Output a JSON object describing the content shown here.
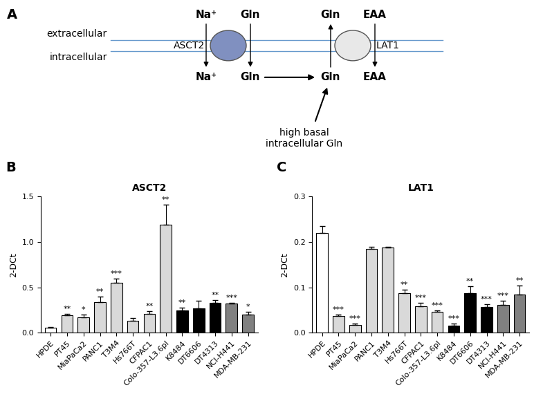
{
  "diagram": {
    "panel": "A",
    "compartments": {
      "top": "extracellular",
      "bottom": "intracellular"
    },
    "transporters": [
      {
        "name": "ASCT2",
        "outside": [
          "Na⁺",
          "Gln"
        ],
        "inside": [
          "Na⁺",
          "Gln"
        ]
      },
      {
        "name": "LAT1",
        "outside": [
          "Gln",
          "EAA"
        ],
        "inside": [
          "Gln",
          "EAA"
        ]
      }
    ],
    "note": "high basal\nintracellular Gln"
  },
  "chart_data": [
    {
      "type": "bar",
      "panel": "B",
      "title": "ASCT2",
      "y_label": "2-DCt",
      "categories": [
        "HPDE",
        "PT45",
        "MiaPaCa2",
        "PANC1",
        "T3M4",
        "Hs766T",
        "CFPAC1",
        "Colo-357-L3.6pl",
        "K8484",
        "DT6606",
        "DT4313",
        "NCI-H441",
        "MDA-MB-231"
      ],
      "values": [
        0.06,
        0.19,
        0.17,
        0.34,
        0.55,
        0.13,
        0.21,
        1.19,
        0.25,
        0.27,
        0.33,
        0.32,
        0.2
      ],
      "errors": [
        0.005,
        0.015,
        0.03,
        0.06,
        0.05,
        0.03,
        0.03,
        0.22,
        0.03,
        0.08,
        0.03,
        0.01,
        0.03
      ],
      "significance": [
        null,
        "**",
        "*",
        "**",
        "***",
        null,
        "**",
        "**",
        "**",
        null,
        "**",
        "***",
        "*"
      ],
      "colors": [
        "#ffffff",
        "#d9d9d9",
        "#d9d9d9",
        "#d9d9d9",
        "#d9d9d9",
        "#d9d9d9",
        "#d9d9d9",
        "#d9d9d9",
        "#000000",
        "#000000",
        "#000000",
        "#808080",
        "#808080"
      ],
      "ylim": [
        0,
        1.5
      ],
      "yticks": [
        {
          "value": 0,
          "label": "0.0"
        },
        0.5,
        {
          "value": 1,
          "label": "1.0"
        },
        1.5
      ]
    },
    {
      "type": "bar",
      "panel": "C",
      "title": "LAT1",
      "y_label": "2-DCt",
      "categories": [
        "HPDE",
        "PT45",
        "MiaPaCa2",
        "PANC1",
        "T3M4",
        "Hs766T",
        "CFPAC1",
        "Colo-357-L3.6pl",
        "K8484",
        "DT6606",
        "DT4313",
        "NCI-H441",
        "MDA-MB-231"
      ],
      "values": [
        0.22,
        0.037,
        0.017,
        0.185,
        0.187,
        0.087,
        0.058,
        0.047,
        0.016,
        0.087,
        0.057,
        0.061,
        0.084
      ],
      "errors": [
        0.015,
        0.003,
        0.003,
        0.004,
        0.003,
        0.008,
        0.008,
        0.003,
        0.004,
        0.015,
        0.006,
        0.01,
        0.02
      ],
      "significance": [
        null,
        "***",
        "***",
        null,
        null,
        "**",
        "***",
        "***",
        "***",
        "**",
        "***",
        "***",
        "**"
      ],
      "colors": [
        "#ffffff",
        "#d9d9d9",
        "#d9d9d9",
        "#d9d9d9",
        "#d9d9d9",
        "#d9d9d9",
        "#d9d9d9",
        "#d9d9d9",
        "#000000",
        "#000000",
        "#000000",
        "#808080",
        "#808080"
      ],
      "ylim": [
        0,
        0.3
      ],
      "yticks": [
        {
          "value": 0,
          "label": "0.0"
        },
        0.1,
        0.2,
        0.3
      ]
    }
  ]
}
